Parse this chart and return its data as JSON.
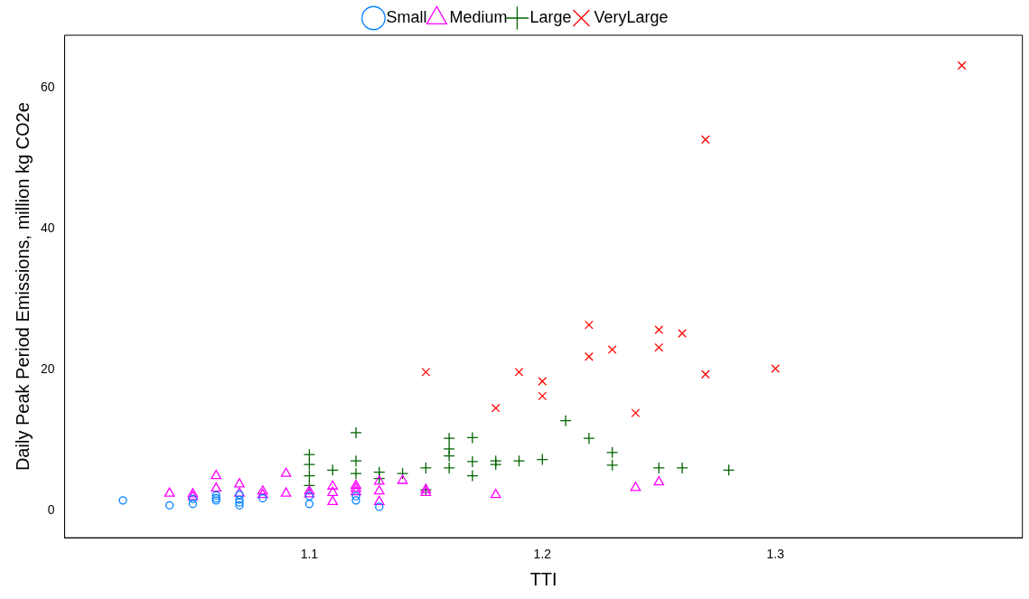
{
  "chart_data": {
    "type": "scatter",
    "xlabel": "TTI",
    "ylabel": "Daily Peak Period Emissions, million kg CO2e",
    "legend": "top",
    "grid": false,
    "xlim": [
      0.995,
      1.406
    ],
    "xticks": [
      1.1,
      1.2,
      1.3
    ],
    "ylim": [
      -3.8,
      67.5
    ],
    "yticks": [
      0,
      20,
      40,
      60
    ],
    "series": [
      {
        "name": "Small",
        "color": "#0080ff",
        "marker": "circle",
        "x": [
          1.02,
          1.04,
          1.05,
          1.05,
          1.06,
          1.06,
          1.06,
          1.07,
          1.07,
          1.07,
          1.07,
          1.08,
          1.1,
          1.1,
          1.12,
          1.12,
          1.13
        ],
        "values": [
          1.5,
          0.8,
          1.0,
          1.7,
          1.5,
          1.8,
          2.2,
          0.8,
          1.2,
          1.6,
          2.3,
          1.8,
          1.0,
          2.1,
          1.5,
          2.1,
          0.6
        ]
      },
      {
        "name": "Medium",
        "color": "#ff00ff",
        "marker": "triangle",
        "x": [
          1.04,
          1.05,
          1.05,
          1.06,
          1.06,
          1.07,
          1.07,
          1.08,
          1.08,
          1.09,
          1.09,
          1.1,
          1.1,
          1.11,
          1.11,
          1.11,
          1.12,
          1.12,
          1.12,
          1.13,
          1.13,
          1.13,
          1.14,
          1.15,
          1.15,
          1.18,
          1.24,
          1.25
        ],
        "values": [
          2.5,
          2.0,
          2.4,
          5.0,
          3.2,
          3.8,
          2.5,
          2.3,
          2.8,
          5.3,
          2.5,
          2.4,
          2.8,
          1.3,
          2.6,
          3.5,
          2.7,
          3.2,
          3.6,
          1.3,
          2.8,
          4.2,
          4.3,
          2.6,
          3.0,
          2.3,
          3.3,
          4.1
        ]
      },
      {
        "name": "Large",
        "color": "#006400",
        "marker": "cross",
        "x": [
          1.1,
          1.1,
          1.1,
          1.1,
          1.11,
          1.12,
          1.12,
          1.12,
          1.13,
          1.13,
          1.14,
          1.15,
          1.15,
          1.16,
          1.16,
          1.16,
          1.16,
          1.17,
          1.17,
          1.17,
          1.18,
          1.18,
          1.19,
          1.2,
          1.21,
          1.22,
          1.23,
          1.23,
          1.25,
          1.26,
          1.28
        ],
        "values": [
          8.0,
          6.6,
          5.0,
          3.6,
          5.8,
          11.1,
          7.1,
          5.3,
          5.5,
          4.6,
          5.3,
          6.1,
          3.0,
          10.3,
          8.8,
          7.8,
          6.1,
          10.4,
          7.0,
          5.0,
          7.1,
          6.6,
          7.1,
          7.3,
          12.8,
          10.3,
          8.3,
          6.5,
          6.1,
          6.1,
          5.8
        ]
      },
      {
        "name": "VeryLarge",
        "color": "#ff0000",
        "marker": "x",
        "x": [
          1.15,
          1.18,
          1.19,
          1.2,
          1.2,
          1.22,
          1.22,
          1.23,
          1.24,
          1.25,
          1.25,
          1.26,
          1.27,
          1.27,
          1.3,
          1.38
        ],
        "values": [
          19.7,
          14.6,
          19.7,
          18.4,
          16.3,
          26.4,
          21.9,
          22.9,
          13.9,
          25.7,
          23.2,
          25.2,
          52.7,
          19.4,
          20.2,
          63.2
        ]
      }
    ]
  }
}
